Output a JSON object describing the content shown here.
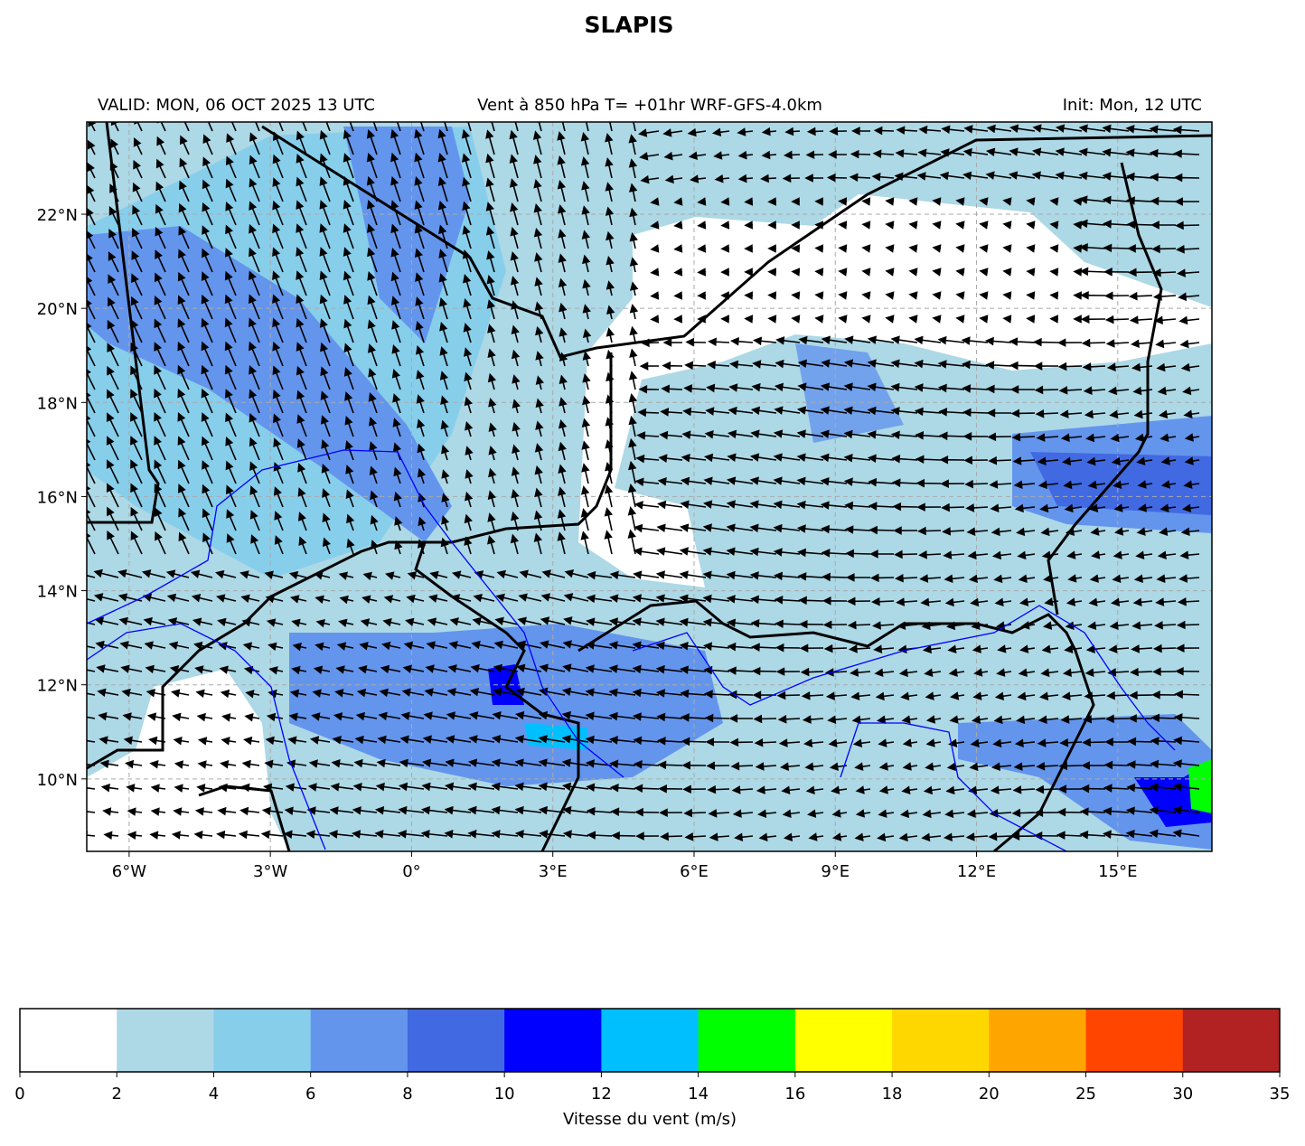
{
  "title": "SLAPIS",
  "subtitle_left": "VALID: MON, 06 OCT 2025 13 UTC",
  "subtitle_center": "Vent à 850 hPa T= +01hr  WRF-GFS-4.0km",
  "subtitle_right": "Init: Mon, 12 UTC",
  "map": {
    "xlim": [
      -6.9,
      17.0
    ],
    "ylim": [
      8.46,
      23.96
    ],
    "xticks": [
      {
        "value": -6,
        "label": "6°W"
      },
      {
        "value": -3,
        "label": "3°W"
      },
      {
        "value": 0,
        "label": "0°"
      },
      {
        "value": 3,
        "label": "3°E"
      },
      {
        "value": 6,
        "label": "6°E"
      },
      {
        "value": 9,
        "label": "9°E"
      },
      {
        "value": 12,
        "label": "12°E"
      },
      {
        "value": 15,
        "label": "15°E"
      }
    ],
    "yticks": [
      {
        "value": 10,
        "label": "10°N"
      },
      {
        "value": 12,
        "label": "12°N"
      },
      {
        "value": 14,
        "label": "14°N"
      },
      {
        "value": 16,
        "label": "16°N"
      },
      {
        "value": 18,
        "label": "18°N"
      },
      {
        "value": 20,
        "label": "20°N"
      },
      {
        "value": 22,
        "label": "22°N"
      }
    ],
    "grid": true
  },
  "colorbar": {
    "label": "Vitesse du vent (m/s)",
    "levels": [
      0,
      2,
      4,
      6,
      8,
      10,
      12,
      14,
      16,
      18,
      20,
      25,
      30,
      35
    ],
    "colors": [
      "#ffffff",
      "#add8e6",
      "#87ceeb",
      "#6495ed",
      "#4169e1",
      "#0000ff",
      "#00bfff",
      "#00ff00",
      "#ffff00",
      "#ffd700",
      "#ffa500",
      "#ff4500",
      "#b22222"
    ]
  }
}
